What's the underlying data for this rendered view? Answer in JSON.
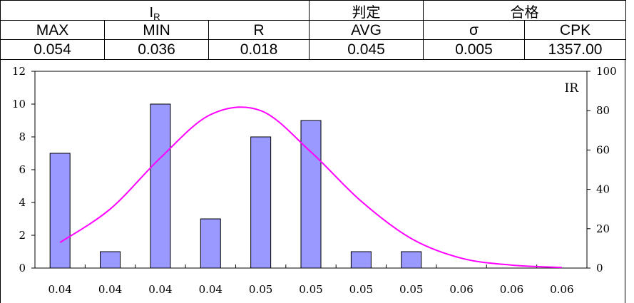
{
  "table": {
    "row1": {
      "ir_main": "I",
      "ir_sub": "R",
      "judge_label": "判定",
      "judge_value": "合格"
    },
    "headers": [
      "MAX",
      "MIN",
      "R",
      "AVG",
      "σ",
      "CPK"
    ],
    "values": [
      "0.054",
      "0.036",
      "0.018",
      "0.045",
      "0.005",
      "1357.00"
    ]
  },
  "chart_data": {
    "type": "bar",
    "series_label": "IR",
    "categories": [
      "0.04",
      "0.04",
      "0.04",
      "0.04",
      "0.05",
      "0.05",
      "0.05",
      "0.05",
      "0.06",
      "0.06",
      "0.06"
    ],
    "series": [
      {
        "type": "bar",
        "axis": "left",
        "values": [
          7,
          1,
          10,
          3,
          8,
          9,
          1,
          1,
          0,
          0,
          0
        ],
        "color": "#9999ff"
      },
      {
        "type": "line",
        "axis": "right",
        "values": [
          13,
          30,
          56,
          78,
          80,
          59,
          34,
          15,
          5,
          1.5,
          0.3
        ],
        "color": "#ff00ff"
      }
    ],
    "y_left": {
      "ylim": [
        0,
        12
      ],
      "ticks": [
        "0",
        "2",
        "4",
        "6",
        "8",
        "10",
        "12"
      ]
    },
    "y_right": {
      "ylim": [
        0,
        100
      ],
      "ticks": [
        "0",
        "20",
        "40",
        "60",
        "80",
        "100"
      ]
    },
    "grid": false
  }
}
